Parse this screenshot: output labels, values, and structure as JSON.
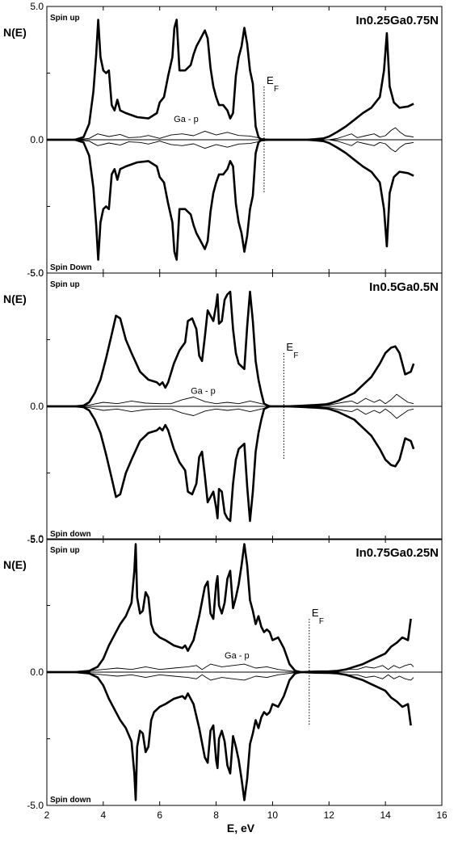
{
  "figure": {
    "xlabel": "E, eV",
    "x_ticks": [
      2,
      4,
      6,
      8,
      10,
      12,
      14,
      16
    ]
  },
  "chart_data": [
    {
      "type": "line",
      "title": "In0.25Ga0.75N",
      "ylabel": "N(E)",
      "xlim": [
        2,
        16
      ],
      "ylim": [
        -5.0,
        5.0
      ],
      "y_ticks": [
        "5.0",
        "0.0",
        "-5.0"
      ],
      "spin_up_label": "Spin up",
      "spin_down_label": "Spin Down",
      "annotation": "Ga - p",
      "annotation_at": [
        6.5,
        0.55
      ],
      "fermi_label": "E",
      "fermi_sub": "F",
      "fermi_level": 9.7,
      "series": [
        {
          "role": "total",
          "x": [
            2.0,
            3.0,
            3.3,
            3.5,
            3.65,
            3.75,
            3.82,
            3.9,
            4.0,
            4.1,
            4.2,
            4.3,
            4.4,
            4.5,
            4.6,
            4.8,
            5.2,
            5.6,
            5.9,
            6.0,
            6.15,
            6.3,
            6.45,
            6.52,
            6.6,
            6.7,
            6.9,
            7.1,
            7.2,
            7.3,
            7.45,
            7.6,
            7.7,
            7.8,
            7.9,
            8.0,
            8.1,
            8.25,
            8.4,
            8.5,
            8.6,
            8.7,
            8.8,
            8.9,
            9.0,
            9.1,
            9.2,
            9.3,
            9.4,
            9.5,
            9.6,
            9.7,
            9.9,
            10.3,
            10.8,
            11.2,
            11.5,
            11.8,
            12.0,
            12.3,
            12.6,
            12.9,
            13.2,
            13.5,
            13.8,
            13.95,
            14.05,
            14.15,
            14.3,
            14.5,
            14.8,
            15.0
          ],
          "y": [
            0,
            0,
            0.1,
            0.6,
            1.8,
            3.2,
            4.5,
            3.1,
            2.6,
            2.5,
            2.6,
            1.3,
            1.1,
            1.5,
            1.1,
            1.0,
            0.85,
            0.8,
            1.0,
            1.4,
            1.6,
            2.4,
            3.1,
            4.2,
            4.5,
            2.6,
            2.6,
            2.8,
            3.2,
            3.5,
            3.8,
            4.1,
            3.8,
            2.7,
            2.0,
            1.6,
            1.3,
            1.3,
            1.1,
            0.8,
            1.0,
            2.4,
            3.1,
            3.5,
            4.2,
            3.6,
            2.6,
            2.1,
            0.5,
            0.1,
            0,
            0,
            0,
            0,
            0,
            0,
            0.02,
            0.05,
            0.12,
            0.3,
            0.5,
            0.75,
            1.0,
            1.2,
            1.6,
            2.6,
            4.0,
            2.0,
            1.4,
            1.2,
            1.25,
            1.35
          ]
        },
        {
          "role": "ga-p",
          "x": [
            2.0,
            3.0,
            3.5,
            3.8,
            4.2,
            4.6,
            4.9,
            5.3,
            5.6,
            6.0,
            6.4,
            6.8,
            7.2,
            7.6,
            8.0,
            8.4,
            8.8,
            9.2,
            9.6,
            10.0,
            11.0,
            12.0,
            12.3,
            12.6,
            12.8,
            13.0,
            13.3,
            13.6,
            13.8,
            14.0,
            14.2,
            14.35,
            14.5,
            14.7,
            14.9,
            15.0
          ],
          "y": [
            0,
            0,
            0.05,
            0.22,
            0.12,
            0.2,
            0.08,
            0.1,
            0.16,
            0.05,
            0.18,
            0.22,
            0.15,
            0.32,
            0.18,
            0.28,
            0.16,
            0.14,
            0.05,
            0,
            0,
            0,
            0.05,
            0.15,
            0.22,
            0.08,
            0.15,
            0.22,
            0.1,
            0.15,
            0.35,
            0.45,
            0.3,
            0.15,
            0.12,
            0.1
          ]
        }
      ]
    },
    {
      "type": "line",
      "title": "In0.5Ga0.5N",
      "ylabel": "N(E)",
      "xlim": [
        2,
        16
      ],
      "ylim": [
        -5.0,
        5.0
      ],
      "y_ticks": [
        "5.0",
        "0.0",
        "-5.0"
      ],
      "spin_up_label": "Spin up",
      "spin_down_label": "Spin down",
      "annotation": "Ga - p",
      "annotation_at": [
        7.1,
        0.35
      ],
      "fermi_label": "E",
      "fermi_sub": "F",
      "fermi_level": 10.4,
      "series": [
        {
          "role": "total",
          "x": [
            2.0,
            3.0,
            3.3,
            3.5,
            3.7,
            3.9,
            4.1,
            4.3,
            4.45,
            4.6,
            4.8,
            5.0,
            5.3,
            5.6,
            5.9,
            6.0,
            6.1,
            6.2,
            6.3,
            6.5,
            6.7,
            6.9,
            7.0,
            7.15,
            7.3,
            7.4,
            7.5,
            7.6,
            7.7,
            7.8,
            7.9,
            8.0,
            8.05,
            8.1,
            8.2,
            8.3,
            8.4,
            8.5,
            8.6,
            8.7,
            8.8,
            8.9,
            9.0,
            9.1,
            9.2,
            9.3,
            9.4,
            9.5,
            9.6,
            9.7,
            9.8,
            9.9,
            10.0,
            10.5,
            11.0,
            11.5,
            11.9,
            12.0,
            12.3,
            12.6,
            12.9,
            13.2,
            13.5,
            13.8,
            14.0,
            14.2,
            14.35,
            14.5,
            14.7,
            14.9,
            15.0
          ],
          "y": [
            0,
            0,
            0.03,
            0.15,
            0.5,
            1.0,
            1.8,
            2.7,
            3.4,
            3.3,
            2.5,
            2.0,
            1.3,
            1.0,
            0.9,
            0.8,
            0.9,
            0.7,
            0.9,
            1.6,
            2.1,
            2.4,
            3.2,
            3.3,
            2.9,
            1.9,
            1.7,
            2.6,
            3.6,
            3.4,
            3.2,
            3.8,
            4.2,
            3.1,
            3.2,
            4.0,
            4.2,
            4.3,
            2.9,
            2.0,
            1.6,
            1.5,
            1.4,
            3.0,
            4.3,
            3.2,
            1.7,
            1.0,
            0.5,
            0.1,
            0.05,
            0,
            0,
            0,
            0.02,
            0.05,
            0.08,
            0.1,
            0.2,
            0.35,
            0.5,
            0.8,
            1.1,
            1.6,
            2.0,
            2.2,
            2.25,
            2.0,
            1.2,
            1.3,
            1.6
          ]
        },
        {
          "role": "ga-p",
          "x": [
            2.0,
            3.0,
            3.5,
            4.0,
            4.5,
            5.0,
            5.5,
            6.0,
            6.4,
            6.8,
            7.2,
            7.6,
            8.0,
            8.4,
            8.8,
            9.2,
            9.6,
            10.0,
            11.0,
            12.0,
            12.5,
            12.8,
            13.0,
            13.3,
            13.6,
            13.8,
            14.0,
            14.2,
            14.4,
            14.6,
            14.8,
            15.0
          ],
          "y": [
            0,
            0,
            0.05,
            0.15,
            0.1,
            0.2,
            0.12,
            0.1,
            0.1,
            0.25,
            0.35,
            0.18,
            0.1,
            0.15,
            0.1,
            0.2,
            0.1,
            0,
            0,
            0.05,
            0.15,
            0.2,
            0.1,
            0.3,
            0.15,
            0.25,
            0.1,
            0.25,
            0.45,
            0.3,
            0.15,
            0.1
          ]
        }
      ]
    },
    {
      "type": "line",
      "title": "In0.75Ga0.25N",
      "ylabel": "N(E)",
      "xlim": [
        2,
        16
      ],
      "ylim": [
        -5.0,
        5.0
      ],
      "y_ticks": [
        "5.0",
        "0.0",
        "-5.0"
      ],
      "spin_up_label": "Spin up",
      "spin_down_label": "Spin down",
      "annotation": "Ga - p",
      "annotation_at": [
        8.3,
        0.4
      ],
      "fermi_label": "E",
      "fermi_sub": "F",
      "fermi_level": 11.3,
      "series": [
        {
          "role": "total",
          "x": [
            2.0,
            3.0,
            3.5,
            3.8,
            4.0,
            4.2,
            4.4,
            4.6,
            4.8,
            5.0,
            5.1,
            5.15,
            5.2,
            5.3,
            5.4,
            5.5,
            5.6,
            5.7,
            5.8,
            6.0,
            6.2,
            6.5,
            6.8,
            6.9,
            7.0,
            7.2,
            7.4,
            7.6,
            7.7,
            7.8,
            7.9,
            8.0,
            8.05,
            8.1,
            8.2,
            8.3,
            8.4,
            8.5,
            8.6,
            8.7,
            8.8,
            8.9,
            9.0,
            9.1,
            9.2,
            9.3,
            9.4,
            9.5,
            9.6,
            9.7,
            9.8,
            9.9,
            10.0,
            10.2,
            10.4,
            10.6,
            10.8,
            11.0,
            11.5,
            12.0,
            12.3,
            12.6,
            12.9,
            13.2,
            13.5,
            13.8,
            14.0,
            14.2,
            14.4,
            14.6,
            14.8,
            14.9
          ],
          "y": [
            0,
            0,
            0.05,
            0.2,
            0.5,
            1.0,
            1.4,
            1.8,
            2.1,
            2.6,
            3.8,
            4.8,
            2.8,
            2.2,
            2.3,
            3.0,
            2.8,
            1.8,
            1.5,
            1.3,
            1.2,
            1.0,
            0.9,
            1.0,
            0.8,
            1.2,
            2.1,
            3.2,
            3.4,
            2.2,
            2.0,
            3.3,
            3.6,
            2.5,
            2.2,
            2.6,
            3.5,
            3.8,
            2.4,
            2.8,
            3.3,
            4.0,
            4.8,
            4.0,
            2.7,
            2.3,
            1.8,
            2.1,
            1.7,
            1.5,
            1.6,
            1.5,
            1.2,
            1.3,
            0.9,
            0.3,
            0.05,
            0,
            0.02,
            0.03,
            0.05,
            0.1,
            0.2,
            0.3,
            0.45,
            0.6,
            0.7,
            0.95,
            1.1,
            1.3,
            1.2,
            2.0
          ]
        },
        {
          "role": "ga-p",
          "x": [
            2.0,
            3.0,
            3.5,
            4.0,
            4.5,
            5.0,
            5.5,
            6.0,
            6.5,
            7.0,
            7.3,
            7.5,
            7.8,
            8.2,
            8.6,
            9.0,
            9.4,
            9.8,
            10.2,
            10.6,
            11.0,
            12.0,
            12.4,
            12.7,
            13.0,
            13.3,
            13.6,
            13.9,
            14.1,
            14.3,
            14.5,
            14.7,
            14.9,
            15.0
          ],
          "y": [
            0,
            0,
            0.05,
            0.1,
            0.15,
            0.1,
            0.2,
            0.1,
            0.15,
            0.2,
            0.25,
            0.1,
            0.3,
            0.2,
            0.25,
            0.3,
            0.15,
            0.2,
            0.1,
            0.05,
            0,
            0,
            0.05,
            0.1,
            0.1,
            0.2,
            0.15,
            0.25,
            0.1,
            0.25,
            0.15,
            0.25,
            0.3,
            0.2
          ]
        }
      ]
    }
  ]
}
